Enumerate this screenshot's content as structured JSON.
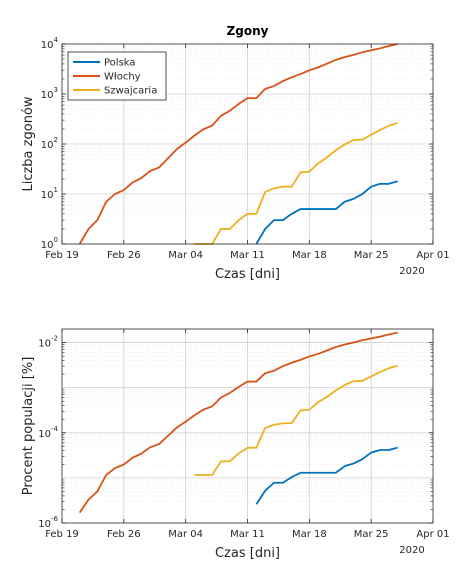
{
  "chart_data": [
    {
      "type": "line",
      "title": "Zgony",
      "xlabel": "Czas [dni]",
      "ylabel": "Liczba zgonów",
      "x_ticks": [
        "Feb 19",
        "Feb 26",
        "Mar 04",
        "Mar 11",
        "Mar 18",
        "Mar 25",
        "Apr 01"
      ],
      "x_year_label": "2020",
      "xlim": [
        "2020-02-19",
        "2020-04-01"
      ],
      "yscale": "log",
      "ylim": [
        1,
        10000
      ],
      "y_ticks": [
        {
          "base": "10",
          "exp": "0"
        },
        {
          "base": "10",
          "exp": "1"
        },
        {
          "base": "10",
          "exp": "2"
        },
        {
          "base": "10",
          "exp": "3"
        },
        {
          "base": "10",
          "exp": "4"
        }
      ],
      "grid": true,
      "legend_position": "top-left",
      "series": [
        {
          "name": "Polska",
          "color": "#0072BD",
          "points": [
            [
              "2020-03-12",
              1
            ],
            [
              "2020-03-13",
              2
            ],
            [
              "2020-03-14",
              3
            ],
            [
              "2020-03-15",
              3
            ],
            [
              "2020-03-16",
              4
            ],
            [
              "2020-03-17",
              5
            ],
            [
              "2020-03-18",
              5
            ],
            [
              "2020-03-19",
              5
            ],
            [
              "2020-03-20",
              5
            ],
            [
              "2020-03-21",
              5
            ],
            [
              "2020-03-22",
              7
            ],
            [
              "2020-03-23",
              8
            ],
            [
              "2020-03-24",
              10
            ],
            [
              "2020-03-25",
              14
            ],
            [
              "2020-03-26",
              16
            ],
            [
              "2020-03-27",
              16
            ],
            [
              "2020-03-28",
              18
            ]
          ]
        },
        {
          "name": "Włochy",
          "color": "#D95319",
          "points": [
            [
              "2020-02-21",
              1
            ],
            [
              "2020-02-22",
              2
            ],
            [
              "2020-02-23",
              3
            ],
            [
              "2020-02-24",
              7
            ],
            [
              "2020-02-25",
              10
            ],
            [
              "2020-02-26",
              12
            ],
            [
              "2020-02-27",
              17
            ],
            [
              "2020-02-28",
              21
            ],
            [
              "2020-02-29",
              29
            ],
            [
              "2020-03-01",
              34
            ],
            [
              "2020-03-02",
              52
            ],
            [
              "2020-03-03",
              79
            ],
            [
              "2020-03-04",
              107
            ],
            [
              "2020-03-05",
              148
            ],
            [
              "2020-03-06",
              197
            ],
            [
              "2020-03-07",
              233
            ],
            [
              "2020-03-08",
              366
            ],
            [
              "2020-03-09",
              463
            ],
            [
              "2020-03-10",
              631
            ],
            [
              "2020-03-11",
              827
            ],
            [
              "2020-03-12",
              827
            ],
            [
              "2020-03-13",
              1266
            ],
            [
              "2020-03-14",
              1441
            ],
            [
              "2020-03-15",
              1809
            ],
            [
              "2020-03-16",
              2158
            ],
            [
              "2020-03-17",
              2503
            ],
            [
              "2020-03-18",
              2978
            ],
            [
              "2020-03-19",
              3405
            ],
            [
              "2020-03-20",
              4032
            ],
            [
              "2020-03-21",
              4825
            ],
            [
              "2020-03-22",
              5476
            ],
            [
              "2020-03-23",
              6077
            ],
            [
              "2020-03-24",
              6820
            ],
            [
              "2020-03-25",
              7503
            ],
            [
              "2020-03-26",
              8165
            ],
            [
              "2020-03-27",
              9134
            ],
            [
              "2020-03-28",
              10023
            ]
          ]
        },
        {
          "name": "Szwajcaria",
          "color": "#EDB120",
          "points": [
            [
              "2020-03-05",
              1
            ],
            [
              "2020-03-06",
              1
            ],
            [
              "2020-03-07",
              1
            ],
            [
              "2020-03-08",
              2
            ],
            [
              "2020-03-09",
              2
            ],
            [
              "2020-03-10",
              3
            ],
            [
              "2020-03-11",
              4
            ],
            [
              "2020-03-12",
              4
            ],
            [
              "2020-03-13",
              11
            ],
            [
              "2020-03-14",
              13
            ],
            [
              "2020-03-15",
              14
            ],
            [
              "2020-03-16",
              14
            ],
            [
              "2020-03-17",
              27
            ],
            [
              "2020-03-18",
              28
            ],
            [
              "2020-03-19",
              41
            ],
            [
              "2020-03-20",
              54
            ],
            [
              "2020-03-21",
              75
            ],
            [
              "2020-03-22",
              98
            ],
            [
              "2020-03-23",
              120
            ],
            [
              "2020-03-24",
              122
            ],
            [
              "2020-03-25",
              153
            ],
            [
              "2020-03-26",
              191
            ],
            [
              "2020-03-27",
              231
            ],
            [
              "2020-03-28",
              264
            ]
          ]
        }
      ]
    },
    {
      "type": "line",
      "title": "",
      "xlabel": "Czas [dni]",
      "ylabel": "Procent populacji [%]",
      "x_ticks": [
        "Feb 19",
        "Feb 26",
        "Mar 04",
        "Mar 11",
        "Mar 18",
        "Mar 25",
        "Apr 01"
      ],
      "x_year_label": "2020",
      "xlim": [
        "2020-02-19",
        "2020-04-01"
      ],
      "yscale": "log",
      "ylim": [
        1e-06,
        0.02
      ],
      "y_ticks": [
        {
          "base": "10",
          "exp": "-6",
          "value": 1e-06
        },
        {
          "base": "10",
          "exp": "-4",
          "value": 0.0001
        },
        {
          "base": "10",
          "exp": "-2",
          "value": 0.01
        }
      ],
      "grid": true,
      "series": [
        {
          "name": "Polska",
          "color": "#0072BD",
          "points": [
            [
              "2020-03-12",
              2.6e-06
            ],
            [
              "2020-03-13",
              5.2e-06
            ],
            [
              "2020-03-14",
              7.8e-06
            ],
            [
              "2020-03-15",
              7.8e-06
            ],
            [
              "2020-03-16",
              1.04e-05
            ],
            [
              "2020-03-17",
              1.3e-05
            ],
            [
              "2020-03-18",
              1.3e-05
            ],
            [
              "2020-03-19",
              1.3e-05
            ],
            [
              "2020-03-20",
              1.3e-05
            ],
            [
              "2020-03-21",
              1.3e-05
            ],
            [
              "2020-03-22",
              1.82e-05
            ],
            [
              "2020-03-23",
              2.08e-05
            ],
            [
              "2020-03-24",
              2.6e-05
            ],
            [
              "2020-03-25",
              3.64e-05
            ],
            [
              "2020-03-26",
              4.16e-05
            ],
            [
              "2020-03-27",
              4.16e-05
            ],
            [
              "2020-03-28",
              4.68e-05
            ]
          ]
        },
        {
          "name": "Włochy",
          "color": "#D95319",
          "points": [
            [
              "2020-02-21",
              1.7e-06
            ],
            [
              "2020-02-22",
              3.3e-06
            ],
            [
              "2020-02-23",
              5e-06
            ],
            [
              "2020-02-24",
              1.16e-05
            ],
            [
              "2020-02-25",
              1.65e-05
            ],
            [
              "2020-02-26",
              1.98e-05
            ],
            [
              "2020-02-27",
              2.81e-05
            ],
            [
              "2020-02-28",
              3.47e-05
            ],
            [
              "2020-02-29",
              4.8e-05
            ],
            [
              "2020-03-01",
              5.63e-05
            ],
            [
              "2020-03-02",
              8.6e-05
            ],
            [
              "2020-03-03",
              0.0001307
            ],
            [
              "2020-03-04",
              0.000177
            ],
            [
              "2020-03-05",
              0.0002449
            ],
            [
              "2020-03-06",
              0.000326
            ],
            [
              "2020-03-07",
              0.0003855
            ],
            [
              "2020-03-08",
              0.0006055
            ],
            [
              "2020-03-09",
              0.000766
            ],
            [
              "2020-03-10",
              0.001044
            ],
            [
              "2020-03-11",
              0.001368
            ],
            [
              "2020-03-12",
              0.001368
            ],
            [
              "2020-03-13",
              0.002094
            ],
            [
              "2020-03-14",
              0.002384
            ],
            [
              "2020-03-15",
              0.002993
            ],
            [
              "2020-03-16",
              0.00357
            ],
            [
              "2020-03-17",
              0.004141
            ],
            [
              "2020-03-18",
              0.004927
            ],
            [
              "2020-03-19",
              0.005633
            ],
            [
              "2020-03-20",
              0.006671
            ],
            [
              "2020-03-21",
              0.007983
            ],
            [
              "2020-03-22",
              0.00906
            ],
            [
              "2020-03-23",
              0.010054
            ],
            [
              "2020-03-24",
              0.011283
            ],
            [
              "2020-03-25",
              0.012413
            ],
            [
              "2020-03-26",
              0.013509
            ],
            [
              "2020-03-27",
              0.015112
            ],
            [
              "2020-03-28",
              0.016582
            ]
          ]
        },
        {
          "name": "Szwajcaria",
          "color": "#EDB120",
          "points": [
            [
              "2020-03-05",
              1.16e-05
            ],
            [
              "2020-03-06",
              1.16e-05
            ],
            [
              "2020-03-07",
              1.16e-05
            ],
            [
              "2020-03-08",
              2.33e-05
            ],
            [
              "2020-03-09",
              2.33e-05
            ],
            [
              "2020-03-10",
              3.49e-05
            ],
            [
              "2020-03-11",
              4.66e-05
            ],
            [
              "2020-03-12",
              4.66e-05
            ],
            [
              "2020-03-13",
              0.000128
            ],
            [
              "2020-03-14",
              0.000151
            ],
            [
              "2020-03-15",
              0.000163
            ],
            [
              "2020-03-16",
              0.000163
            ],
            [
              "2020-03-17",
              0.000314
            ],
            [
              "2020-03-18",
              0.000326
            ],
            [
              "2020-03-19",
              0.000477
            ],
            [
              "2020-03-20",
              0.000628
            ],
            [
              "2020-03-21",
              0.000873
            ],
            [
              "2020-03-22",
              0.00114
            ],
            [
              "2020-03-23",
              0.0014
            ],
            [
              "2020-03-24",
              0.00142
            ],
            [
              "2020-03-25",
              0.00178
            ],
            [
              "2020-03-26",
              0.00222
            ],
            [
              "2020-03-27",
              0.00269
            ],
            [
              "2020-03-28",
              0.00307
            ]
          ]
        }
      ]
    }
  ]
}
